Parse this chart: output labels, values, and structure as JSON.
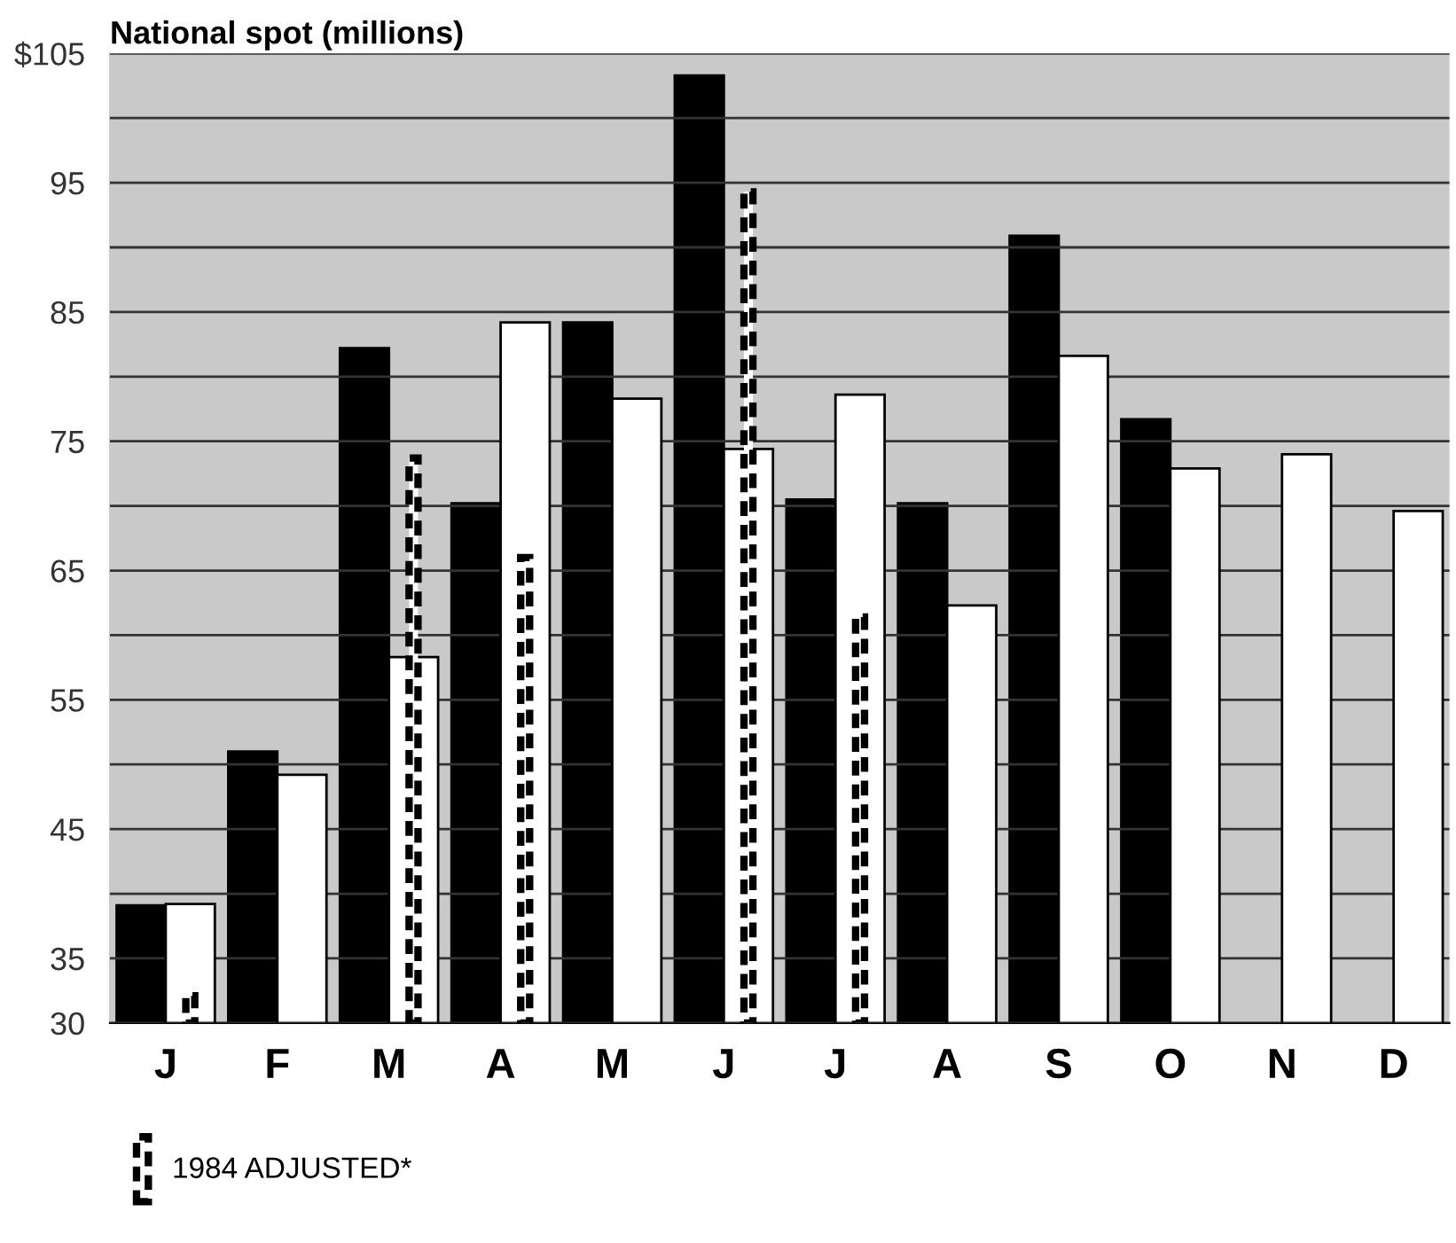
{
  "chart_data": {
    "type": "bar",
    "title": "National spot (millions)",
    "categories": [
      "J",
      "F",
      "M",
      "A",
      "M",
      "J",
      "J",
      "A",
      "S",
      "O",
      "N",
      "D"
    ],
    "series": [
      {
        "color": "#000000",
        "values": [
          39.1,
          51.0,
          82.2,
          70.2,
          84.2,
          103.3,
          70.5,
          70.2,
          90.9,
          76.7,
          null,
          null
        ]
      },
      {
        "color": "#ffffff",
        "values": [
          39.2,
          49.2,
          58.3,
          84.2,
          78.3,
          74.4,
          78.6,
          62.3,
          81.6,
          72.9,
          74.0,
          69.6
        ]
      },
      {
        "name": "1984 ADJUSTED*",
        "color": "#000000",
        "line_style": "dashed",
        "values": [
          32.1,
          null,
          73.7,
          66.0,
          null,
          94.3,
          61.4,
          null,
          null,
          null,
          null,
          null
        ]
      }
    ],
    "ylim": [
      30,
      105
    ],
    "yticks": [
      30,
      35,
      {
        "value": 40,
        "label": null
      },
      45,
      {
        "value": 50,
        "label": null
      },
      55,
      {
        "value": 60,
        "label": null
      },
      65,
      {
        "value": 70,
        "label": null
      },
      75,
      {
        "value": 80,
        "label": null
      },
      85,
      {
        "value": 90,
        "label": null
      },
      95,
      {
        "value": 100,
        "label": null
      },
      {
        "value": 105,
        "label": "$105"
      }
    ],
    "grid": "y",
    "legend": "bottom left"
  }
}
